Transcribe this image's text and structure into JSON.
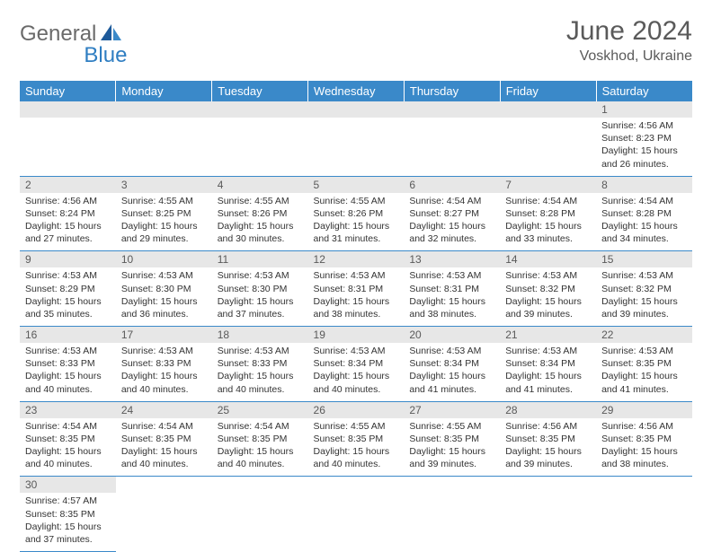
{
  "logo": {
    "text1": "General",
    "text2": "Blue"
  },
  "title": "June 2024",
  "location": "Voskhod, Ukraine",
  "colors": {
    "header_bg": "#3a89c9",
    "header_text": "#ffffff",
    "daynum_bg": "#e7e7e7",
    "border": "#3a89c9",
    "text": "#333333",
    "title_color": "#5a5a5a",
    "logo_gray": "#6a6a6a",
    "logo_blue": "#2f7ec2"
  },
  "days_of_week": [
    "Sunday",
    "Monday",
    "Tuesday",
    "Wednesday",
    "Thursday",
    "Friday",
    "Saturday"
  ],
  "weeks": [
    [
      null,
      null,
      null,
      null,
      null,
      null,
      {
        "d": "1",
        "sr": "Sunrise: 4:56 AM",
        "ss": "Sunset: 8:23 PM",
        "dl1": "Daylight: 15 hours",
        "dl2": "and 26 minutes."
      }
    ],
    [
      {
        "d": "2",
        "sr": "Sunrise: 4:56 AM",
        "ss": "Sunset: 8:24 PM",
        "dl1": "Daylight: 15 hours",
        "dl2": "and 27 minutes."
      },
      {
        "d": "3",
        "sr": "Sunrise: 4:55 AM",
        "ss": "Sunset: 8:25 PM",
        "dl1": "Daylight: 15 hours",
        "dl2": "and 29 minutes."
      },
      {
        "d": "4",
        "sr": "Sunrise: 4:55 AM",
        "ss": "Sunset: 8:26 PM",
        "dl1": "Daylight: 15 hours",
        "dl2": "and 30 minutes."
      },
      {
        "d": "5",
        "sr": "Sunrise: 4:55 AM",
        "ss": "Sunset: 8:26 PM",
        "dl1": "Daylight: 15 hours",
        "dl2": "and 31 minutes."
      },
      {
        "d": "6",
        "sr": "Sunrise: 4:54 AM",
        "ss": "Sunset: 8:27 PM",
        "dl1": "Daylight: 15 hours",
        "dl2": "and 32 minutes."
      },
      {
        "d": "7",
        "sr": "Sunrise: 4:54 AM",
        "ss": "Sunset: 8:28 PM",
        "dl1": "Daylight: 15 hours",
        "dl2": "and 33 minutes."
      },
      {
        "d": "8",
        "sr": "Sunrise: 4:54 AM",
        "ss": "Sunset: 8:28 PM",
        "dl1": "Daylight: 15 hours",
        "dl2": "and 34 minutes."
      }
    ],
    [
      {
        "d": "9",
        "sr": "Sunrise: 4:53 AM",
        "ss": "Sunset: 8:29 PM",
        "dl1": "Daylight: 15 hours",
        "dl2": "and 35 minutes."
      },
      {
        "d": "10",
        "sr": "Sunrise: 4:53 AM",
        "ss": "Sunset: 8:30 PM",
        "dl1": "Daylight: 15 hours",
        "dl2": "and 36 minutes."
      },
      {
        "d": "11",
        "sr": "Sunrise: 4:53 AM",
        "ss": "Sunset: 8:30 PM",
        "dl1": "Daylight: 15 hours",
        "dl2": "and 37 minutes."
      },
      {
        "d": "12",
        "sr": "Sunrise: 4:53 AM",
        "ss": "Sunset: 8:31 PM",
        "dl1": "Daylight: 15 hours",
        "dl2": "and 38 minutes."
      },
      {
        "d": "13",
        "sr": "Sunrise: 4:53 AM",
        "ss": "Sunset: 8:31 PM",
        "dl1": "Daylight: 15 hours",
        "dl2": "and 38 minutes."
      },
      {
        "d": "14",
        "sr": "Sunrise: 4:53 AM",
        "ss": "Sunset: 8:32 PM",
        "dl1": "Daylight: 15 hours",
        "dl2": "and 39 minutes."
      },
      {
        "d": "15",
        "sr": "Sunrise: 4:53 AM",
        "ss": "Sunset: 8:32 PM",
        "dl1": "Daylight: 15 hours",
        "dl2": "and 39 minutes."
      }
    ],
    [
      {
        "d": "16",
        "sr": "Sunrise: 4:53 AM",
        "ss": "Sunset: 8:33 PM",
        "dl1": "Daylight: 15 hours",
        "dl2": "and 40 minutes."
      },
      {
        "d": "17",
        "sr": "Sunrise: 4:53 AM",
        "ss": "Sunset: 8:33 PM",
        "dl1": "Daylight: 15 hours",
        "dl2": "and 40 minutes."
      },
      {
        "d": "18",
        "sr": "Sunrise: 4:53 AM",
        "ss": "Sunset: 8:33 PM",
        "dl1": "Daylight: 15 hours",
        "dl2": "and 40 minutes."
      },
      {
        "d": "19",
        "sr": "Sunrise: 4:53 AM",
        "ss": "Sunset: 8:34 PM",
        "dl1": "Daylight: 15 hours",
        "dl2": "and 40 minutes."
      },
      {
        "d": "20",
        "sr": "Sunrise: 4:53 AM",
        "ss": "Sunset: 8:34 PM",
        "dl1": "Daylight: 15 hours",
        "dl2": "and 41 minutes."
      },
      {
        "d": "21",
        "sr": "Sunrise: 4:53 AM",
        "ss": "Sunset: 8:34 PM",
        "dl1": "Daylight: 15 hours",
        "dl2": "and 41 minutes."
      },
      {
        "d": "22",
        "sr": "Sunrise: 4:53 AM",
        "ss": "Sunset: 8:35 PM",
        "dl1": "Daylight: 15 hours",
        "dl2": "and 41 minutes."
      }
    ],
    [
      {
        "d": "23",
        "sr": "Sunrise: 4:54 AM",
        "ss": "Sunset: 8:35 PM",
        "dl1": "Daylight: 15 hours",
        "dl2": "and 40 minutes."
      },
      {
        "d": "24",
        "sr": "Sunrise: 4:54 AM",
        "ss": "Sunset: 8:35 PM",
        "dl1": "Daylight: 15 hours",
        "dl2": "and 40 minutes."
      },
      {
        "d": "25",
        "sr": "Sunrise: 4:54 AM",
        "ss": "Sunset: 8:35 PM",
        "dl1": "Daylight: 15 hours",
        "dl2": "and 40 minutes."
      },
      {
        "d": "26",
        "sr": "Sunrise: 4:55 AM",
        "ss": "Sunset: 8:35 PM",
        "dl1": "Daylight: 15 hours",
        "dl2": "and 40 minutes."
      },
      {
        "d": "27",
        "sr": "Sunrise: 4:55 AM",
        "ss": "Sunset: 8:35 PM",
        "dl1": "Daylight: 15 hours",
        "dl2": "and 39 minutes."
      },
      {
        "d": "28",
        "sr": "Sunrise: 4:56 AM",
        "ss": "Sunset: 8:35 PM",
        "dl1": "Daylight: 15 hours",
        "dl2": "and 39 minutes."
      },
      {
        "d": "29",
        "sr": "Sunrise: 4:56 AM",
        "ss": "Sunset: 8:35 PM",
        "dl1": "Daylight: 15 hours",
        "dl2": "and 38 minutes."
      }
    ],
    [
      {
        "d": "30",
        "sr": "Sunrise: 4:57 AM",
        "ss": "Sunset: 8:35 PM",
        "dl1": "Daylight: 15 hours",
        "dl2": "and 37 minutes."
      },
      null,
      null,
      null,
      null,
      null,
      null
    ]
  ]
}
